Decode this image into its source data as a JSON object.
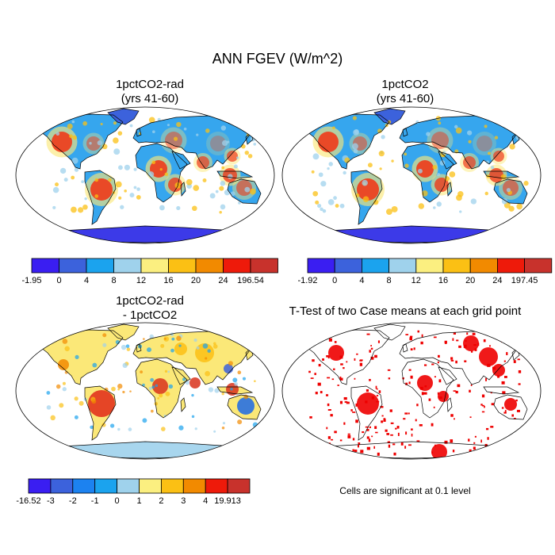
{
  "title": "ANN FGEV (W/m^2)",
  "panels": [
    {
      "id": "a",
      "title_line1": "1pctCO2-rad",
      "title_line2": "(yrs 41-60)",
      "kind": "field",
      "colorbar": {
        "labels": [
          "-1.95",
          "0",
          "4",
          "8",
          "12",
          "16",
          "20",
          "24",
          "196.54"
        ],
        "colors": [
          "#3a1ef2",
          "#3c62dc",
          "#1ba3ee",
          "#9fd2ec",
          "#fbef80",
          "#fbc014",
          "#f28a00",
          "#ee1a0a",
          "#c8322c"
        ]
      }
    },
    {
      "id": "b",
      "title_line1": "1pctCO2",
      "title_line2": "(yrs 41-60)",
      "kind": "field",
      "colorbar": {
        "labels": [
          "-1.92",
          "0",
          "4",
          "8",
          "12",
          "16",
          "20",
          "24",
          "197.45"
        ],
        "colors": [
          "#3a1ef2",
          "#3c62dc",
          "#1ba3ee",
          "#9fd2ec",
          "#fbef80",
          "#fbc014",
          "#f28a00",
          "#ee1a0a",
          "#c8322c"
        ]
      }
    },
    {
      "id": "c",
      "title_line1": "1pctCO2-rad",
      "title_line2": "- 1pctCO2",
      "kind": "difference",
      "colorbar": {
        "labels": [
          "-16.52",
          "-3",
          "-2",
          "-1",
          "0",
          "1",
          "2",
          "3",
          "4",
          "19.913"
        ],
        "colors": [
          "#3a1ef2",
          "#3c62dc",
          "#1c82f0",
          "#1ba3ee",
          "#9fd2ec",
          "#fbef80",
          "#fbc014",
          "#f28a00",
          "#ee1a0a",
          "#c8322c"
        ]
      }
    },
    {
      "id": "d",
      "title_line1": "T-Test of two Case means at each grid point",
      "kind": "significance",
      "note": "Cells are significant at 0.1 level",
      "sig_color": "#ee0000"
    }
  ]
}
